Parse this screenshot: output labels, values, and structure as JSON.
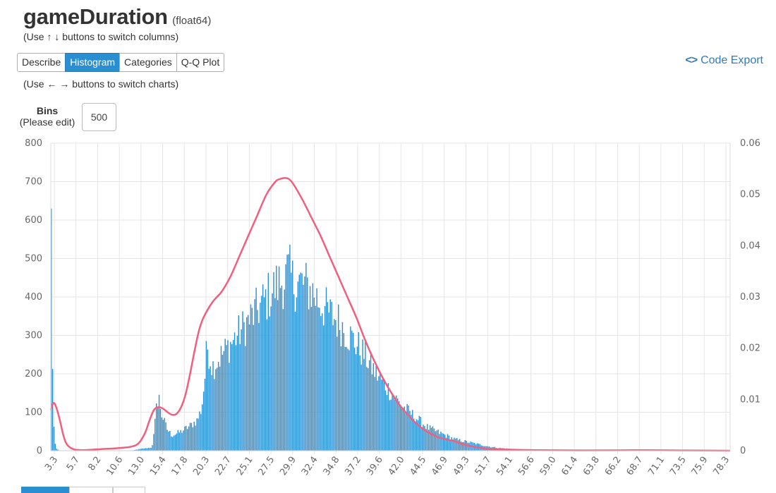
{
  "header": {
    "column_name": "gameDuration",
    "dtype": "(float64)",
    "column_hint": "(Use ↑ ↓ buttons to switch columns)"
  },
  "tabs": [
    {
      "label": "Describe",
      "active": false
    },
    {
      "label": "Histogram",
      "active": true
    },
    {
      "label": "Categories",
      "active": false
    },
    {
      "label": "Q-Q Plot",
      "active": false
    }
  ],
  "chart_hint": "(Use ← → buttons to switch charts)",
  "code_export": {
    "icon": "code-icon",
    "label": "Code Export"
  },
  "bins": {
    "title": "Bins",
    "subtitle": "(Please edit)",
    "value": "500"
  },
  "colors": {
    "bar": "#2a8fd1",
    "kde": "#f0607e",
    "grid": "#e6e6e6",
    "active_tab": "#2a8fd1",
    "link": "#337ab7"
  },
  "chart_data": {
    "type": "bar",
    "title": "",
    "xlabel": "",
    "ylabel": "",
    "ylim": [
      0,
      800
    ],
    "y2lim": [
      0,
      0.06
    ],
    "x_range": [
      3.0,
      78.6
    ],
    "y_ticks": [
      0,
      100,
      200,
      300,
      400,
      500,
      600,
      700,
      800
    ],
    "y2_ticks": [
      "0",
      "0.01",
      "0.02",
      "0.03",
      "0.04",
      "0.05",
      "0.06"
    ],
    "x_tick_labels": [
      "3.3",
      "5.7",
      "8.2",
      "10.6",
      "13.0",
      "15.4",
      "17.8",
      "20.3",
      "22.7",
      "25.1",
      "27.5",
      "29.9",
      "32.4",
      "34.8",
      "37.2",
      "39.6",
      "42.0",
      "44.5",
      "46.9",
      "49.3",
      "51.7",
      "54.1",
      "56.6",
      "59.0",
      "61.4",
      "63.8",
      "66.2",
      "68.7",
      "71.1",
      "73.5",
      "75.9",
      "78.3"
    ],
    "grid": true,
    "legend": "none",
    "series": [
      {
        "type": "histogram",
        "bin_start": 3.0,
        "bin_width": 0.15,
        "anchors": [
          [
            3.05,
            730
          ],
          [
            3.15,
            330
          ],
          [
            3.3,
            95
          ],
          [
            3.45,
            30
          ],
          [
            3.6,
            6
          ],
          [
            4.0,
            0
          ],
          [
            12.0,
            0
          ],
          [
            12.6,
            3
          ],
          [
            13.5,
            6
          ],
          [
            14.3,
            9
          ],
          [
            14.6,
            60
          ],
          [
            14.75,
            150
          ],
          [
            14.9,
            110
          ],
          [
            15.1,
            140
          ],
          [
            15.3,
            100
          ],
          [
            15.6,
            80
          ],
          [
            16.0,
            55
          ],
          [
            16.5,
            40
          ],
          [
            17.5,
            50
          ],
          [
            18.5,
            65
          ],
          [
            19.3,
            80
          ],
          [
            19.8,
            110
          ],
          [
            20.2,
            200
          ],
          [
            20.4,
            280
          ],
          [
            21.0,
            220
          ],
          [
            22.0,
            250
          ],
          [
            23.0,
            280
          ],
          [
            24.0,
            310
          ],
          [
            25.0,
            340
          ],
          [
            26.0,
            370
          ],
          [
            27.0,
            400
          ],
          [
            28.0,
            430
          ],
          [
            29.0,
            450
          ],
          [
            29.5,
            470
          ],
          [
            30.0,
            440
          ],
          [
            31.0,
            440
          ],
          [
            32.0,
            420
          ],
          [
            33.0,
            390
          ],
          [
            34.0,
            360
          ],
          [
            35.0,
            340
          ],
          [
            36.0,
            310
          ],
          [
            37.0,
            280
          ],
          [
            38.0,
            250
          ],
          [
            39.0,
            210
          ],
          [
            40.0,
            180
          ],
          [
            41.0,
            150
          ],
          [
            42.0,
            120
          ],
          [
            43.0,
            100
          ],
          [
            44.0,
            80
          ],
          [
            45.0,
            60
          ],
          [
            46.0,
            50
          ],
          [
            47.0,
            40
          ],
          [
            48.0,
            30
          ],
          [
            49.0,
            25
          ],
          [
            50.0,
            20
          ],
          [
            51.0,
            15
          ],
          [
            52.0,
            10
          ],
          [
            53.0,
            7
          ],
          [
            54.0,
            5
          ],
          [
            55.0,
            3
          ],
          [
            56.0,
            2
          ],
          [
            57.0,
            1
          ],
          [
            58.0,
            0.5
          ],
          [
            60.0,
            0
          ]
        ]
      },
      {
        "type": "kde",
        "points": [
          [
            3.0,
            0.008
          ],
          [
            3.3,
            0.0093
          ],
          [
            3.6,
            0.0085
          ],
          [
            4.0,
            0.006
          ],
          [
            4.4,
            0.003
          ],
          [
            4.8,
            0.0012
          ],
          [
            5.5,
            0.0003
          ],
          [
            6.5,
            0.0001
          ],
          [
            8.5,
            0.0003
          ],
          [
            10.5,
            0.0005
          ],
          [
            12.0,
            0.0008
          ],
          [
            12.8,
            0.0015
          ],
          [
            13.5,
            0.0035
          ],
          [
            14.0,
            0.006
          ],
          [
            14.5,
            0.008
          ],
          [
            15.0,
            0.0085
          ],
          [
            15.5,
            0.0082
          ],
          [
            16.0,
            0.0075
          ],
          [
            16.5,
            0.007
          ],
          [
            17.0,
            0.0072
          ],
          [
            17.5,
            0.0085
          ],
          [
            18.0,
            0.011
          ],
          [
            18.5,
            0.015
          ],
          [
            19.0,
            0.0195
          ],
          [
            19.5,
            0.0235
          ],
          [
            20.0,
            0.026
          ],
          [
            21.0,
            0.029
          ],
          [
            22.0,
            0.031
          ],
          [
            23.0,
            0.034
          ],
          [
            24.0,
            0.038
          ],
          [
            25.0,
            0.042
          ],
          [
            26.0,
            0.046
          ],
          [
            27.0,
            0.05
          ],
          [
            28.0,
            0.0525
          ],
          [
            28.5,
            0.053
          ],
          [
            29.0,
            0.0532
          ],
          [
            29.5,
            0.053
          ],
          [
            30.0,
            0.052
          ],
          [
            31.0,
            0.049
          ],
          [
            32.0,
            0.0455
          ],
          [
            33.0,
            0.042
          ],
          [
            34.0,
            0.038
          ],
          [
            35.0,
            0.034
          ],
          [
            36.0,
            0.03
          ],
          [
            37.0,
            0.026
          ],
          [
            38.0,
            0.0215
          ],
          [
            39.0,
            0.0175
          ],
          [
            40.0,
            0.014
          ],
          [
            41.0,
            0.011
          ],
          [
            42.0,
            0.0085
          ],
          [
            43.0,
            0.0065
          ],
          [
            44.0,
            0.0048
          ],
          [
            45.0,
            0.0036
          ],
          [
            46.0,
            0.0027
          ],
          [
            47.0,
            0.0022
          ],
          [
            48.0,
            0.0018
          ],
          [
            49.0,
            0.0012
          ],
          [
            50.0,
            0.0008
          ],
          [
            51.0,
            0.0005
          ],
          [
            52.0,
            0.0003
          ],
          [
            54.0,
            0.0002
          ],
          [
            57.0,
            0.0001
          ],
          [
            62.0,
            5e-05
          ],
          [
            68.0,
            0.0001
          ],
          [
            73.0,
            5e-05
          ],
          [
            78.6,
            0.0
          ]
        ]
      }
    ]
  }
}
